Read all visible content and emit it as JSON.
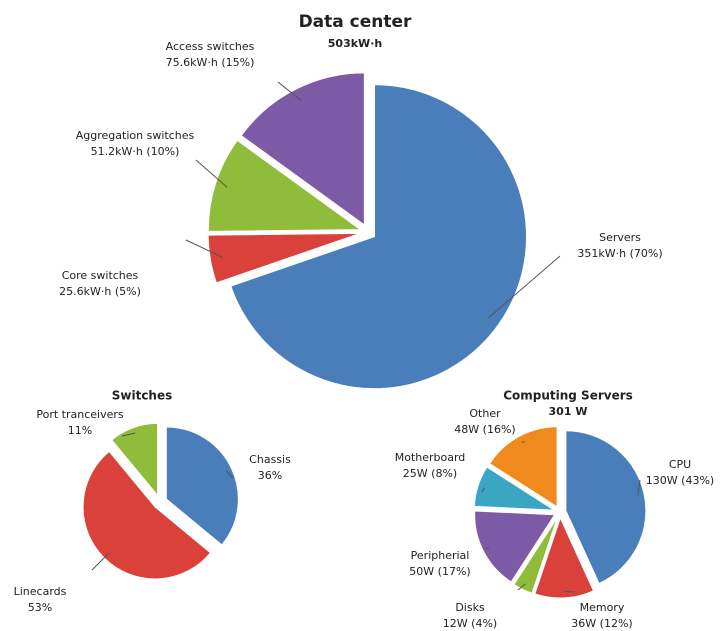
{
  "chart_data": [
    {
      "type": "pie",
      "title": "Data center",
      "subtitle": "503kW·h",
      "categories": [
        "Servers",
        "Core switches",
        "Aggregation switches",
        "Access switches"
      ],
      "values": [
        351,
        25.6,
        51.2,
        75.6
      ],
      "value_labels": [
        "351kW·h (70%)",
        "25.6kW·h (5%)",
        "51.2kW·h (10%)",
        "75.6kW·h (15%)"
      ],
      "colors": [
        "#4a7ebb",
        "#d9413a",
        "#8fbc3a",
        "#7d5aa6"
      ]
    },
    {
      "type": "pie",
      "title": "Switches",
      "categories": [
        "Chassis",
        "Linecards",
        "Port tranceivers"
      ],
      "values": [
        36,
        53,
        11
      ],
      "value_labels": [
        "36%",
        "53%",
        "11%"
      ],
      "colors": [
        "#4a7ebb",
        "#d9413a",
        "#8fbc3a"
      ]
    },
    {
      "type": "pie",
      "title": "Computing Servers",
      "subtitle": "301 W",
      "categories": [
        "CPU",
        "Memory",
        "Disks",
        "Peripherial",
        "Motherboard",
        "Other"
      ],
      "values": [
        130,
        36,
        12,
        50,
        25,
        48
      ],
      "value_labels": [
        "130W (43%)",
        "36W (12%)",
        "12W (4%)",
        "50W (17%)",
        "25W (8%)",
        "48W (16%)"
      ],
      "colors": [
        "#4a7ebb",
        "#d9413a",
        "#8fbc3a",
        "#7d5aa6",
        "#3aa6c4",
        "#f08a1c"
      ]
    }
  ]
}
